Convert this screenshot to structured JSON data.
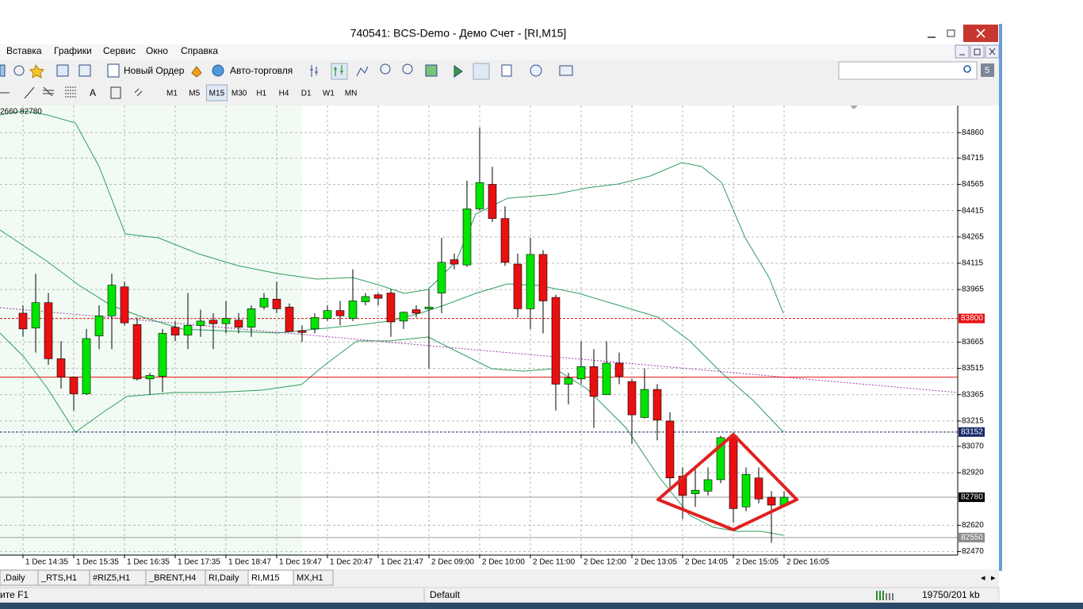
{
  "window": {
    "title": "740541: BCS-Demo - Демо Счет - [RI,M15]"
  },
  "menu": [
    "Вставка",
    "Графики",
    "Сервис",
    "Окно",
    "Справка"
  ],
  "toolbar": {
    "new_order": "Новый Ордер",
    "auto_trading": "Авто-торговля",
    "search_badge": "5"
  },
  "timeframes": [
    "M1",
    "M5",
    "M15",
    "M30",
    "H1",
    "H4",
    "D1",
    "W1",
    "MN"
  ],
  "chart_data": {
    "type": "candlestick",
    "info": "2660 82780",
    "ylim": [
      82450,
      85015
    ],
    "yticks": [
      84860,
      84715,
      84565,
      84415,
      84265,
      84115,
      83965,
      83665,
      83515,
      83365,
      83215,
      83070,
      82920,
      82620,
      82470
    ],
    "grid": true,
    "bull_color": "#00e400",
    "bear_color": "#e81010",
    "x": [
      "1 Dec 14:35",
      null,
      null,
      null,
      "1 Dec 15:35",
      null,
      null,
      null,
      "1 Dec 16:35",
      null,
      null,
      null,
      "1 Dec 17:35",
      null,
      null,
      null,
      "1 Dec 18:47",
      null,
      null,
      null,
      "1 Dec 19:47",
      null,
      null,
      null,
      "1 Dec 20:47",
      null,
      null,
      null,
      "1 Dec 21:47",
      null,
      null,
      null,
      "2 Dec 09:00",
      null,
      null,
      null,
      "2 Dec 10:00",
      null,
      null,
      null,
      "2 Dec 11:00",
      null,
      null,
      null,
      "2 Dec 12:00",
      null,
      null,
      null,
      "2 Dec 13:05",
      null,
      null,
      null,
      "2 Dec 14:05",
      null,
      null,
      null,
      "2 Dec 15:05",
      null,
      null,
      null,
      "2 Dec 16:05"
    ],
    "open": [
      83830,
      83745,
      83890,
      83570,
      83465,
      83370,
      83700,
      83815,
      83980,
      83765,
      83455,
      83470,
      83750,
      83705,
      83760,
      83790,
      83770,
      83790,
      83750,
      83865,
      83910,
      83865,
      83730,
      83740,
      83800,
      83845,
      83800,
      83895,
      83935,
      83945,
      83785,
      83850,
      83855,
      83945,
      84135,
      84105,
      84425,
      84565,
      84370,
      84110,
      83855,
      84165,
      83920,
      83425,
      83455,
      83525,
      83365,
      83545,
      83440,
      83235,
      83395,
      83215,
      82900,
      82800,
      82815,
      82880,
      83130,
      82725,
      82890,
      82780,
      82735
    ],
    "high": [
      83875,
      84055,
      83945,
      83670,
      83470,
      83740,
      83875,
      84055,
      84010,
      83805,
      83490,
      83740,
      83785,
      83945,
      83850,
      83830,
      83900,
      83830,
      83875,
      83945,
      84010,
      83885,
      83760,
      83830,
      83875,
      83900,
      84080,
      83945,
      83945,
      83965,
      83840,
      83875,
      83965,
      84260,
      84170,
      84585,
      84890,
      84665,
      84440,
      84170,
      84260,
      84190,
      83935,
      83490,
      83670,
      83625,
      83670,
      83605,
      83455,
      83515,
      83425,
      83265,
      82950,
      82950,
      82950,
      83130,
      83150,
      82950,
      82950,
      82815,
      82815
    ],
    "low": [
      83695,
      83605,
      83535,
      83400,
      83275,
      83365,
      83625,
      83625,
      83760,
      83445,
      83365,
      83380,
      83670,
      83625,
      83695,
      83625,
      83715,
      83715,
      83695,
      83850,
      83830,
      83725,
      83665,
      83715,
      83785,
      83760,
      83785,
      83875,
      83875,
      83695,
      83740,
      83805,
      83515,
      83830,
      84080,
      84095,
      84415,
      84350,
      84100,
      83805,
      83740,
      83715,
      83275,
      83310,
      83425,
      83175,
      83365,
      83425,
      83085,
      83230,
      83105,
      82815,
      82655,
      82725,
      82790,
      82860,
      82635,
      82700,
      82745,
      82520,
      82725
    ],
    "close": [
      83740,
      83890,
      83570,
      83465,
      83370,
      83685,
      83815,
      83990,
      83775,
      83455,
      83475,
      83715,
      83705,
      83760,
      83785,
      83770,
      83800,
      83750,
      83855,
      83915,
      83855,
      83725,
      83720,
      83805,
      83845,
      83815,
      83900,
      83925,
      83915,
      83780,
      83835,
      83830,
      83865,
      84120,
      84110,
      84425,
      84575,
      84370,
      84120,
      83855,
      84165,
      83900,
      83425,
      83460,
      83525,
      83355,
      83545,
      83470,
      83250,
      83395,
      83220,
      82890,
      82790,
      82820,
      82880,
      83120,
      82715,
      82910,
      82770,
      82735,
      82780
    ],
    "price_labels": [
      {
        "value": 83800,
        "color": "#e81010"
      },
      {
        "value": 83152,
        "color": "#1a2a6a"
      },
      {
        "value": 82780,
        "color": "#000000"
      },
      {
        "value": 82550,
        "color": "#8a8a8a"
      }
    ],
    "level_line": 83465
  },
  "tabs": [
    ",Daily",
    "_RTS,H1",
    "#RIZ5,H1",
    "_BRENT,H4",
    "RI,Daily",
    "RI,M15",
    "MX,H1"
  ],
  "status": {
    "help": "ите F1",
    "profile": "Default",
    "traffic": "19750/201 kb"
  }
}
